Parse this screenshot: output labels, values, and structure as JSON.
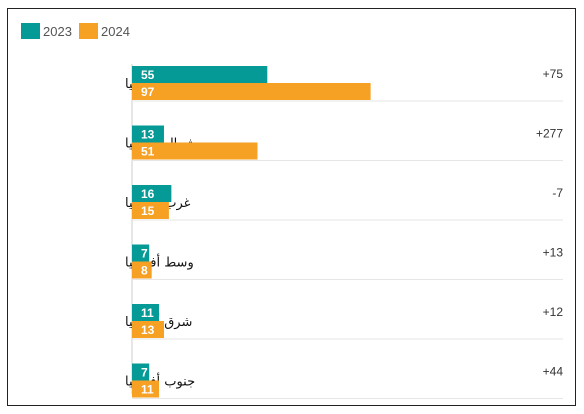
{
  "chart_data": {
    "type": "bar",
    "orientation": "horizontal",
    "categories": [
      "أفريقيا",
      "شمال أفريقيا",
      "غرب أفريقيا",
      "وسط أفريقيا",
      "شرق أفريقيا",
      "جنوب أفريقيا"
    ],
    "series": [
      {
        "name": "2023",
        "color": "#069a96",
        "values": [
          55,
          13,
          16,
          7,
          11,
          7
        ]
      },
      {
        "name": "2024",
        "color": "#f6a024",
        "values": [
          97,
          51,
          15,
          8,
          13,
          11
        ]
      }
    ],
    "change_labels": [
      "+75",
      "+277",
      "-7",
      "+13",
      "+12",
      "+44"
    ],
    "xlim": [
      0,
      180
    ],
    "legend": "top-left",
    "grid": false
  }
}
